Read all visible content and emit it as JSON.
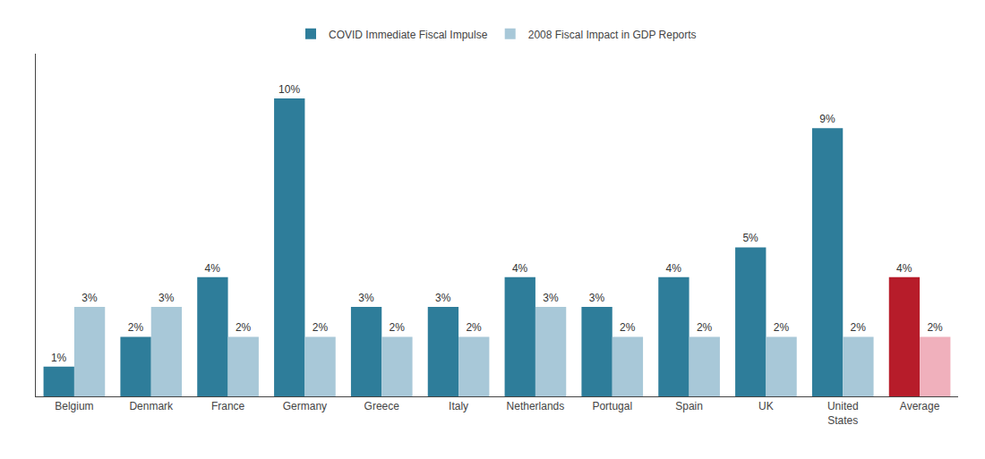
{
  "chart_data": {
    "type": "bar",
    "categories": [
      "Belgium",
      "Denmark",
      "France",
      "Germany",
      "Greece",
      "Italy",
      "Netherlands",
      "Portugal",
      "Spain",
      "UK",
      "United\nStates",
      "Average"
    ],
    "series": [
      {
        "name": "COVID Immediate Fiscal Impulse",
        "values": [
          1,
          2,
          4,
          10,
          3,
          3,
          4,
          3,
          4,
          5,
          9,
          4
        ],
        "value_labels": [
          "1%",
          "2%",
          "4%",
          "10%",
          "3%",
          "3%",
          "4%",
          "3%",
          "4%",
          "5%",
          "9%",
          "4%"
        ],
        "colors": [
          "#2e7d9a",
          "#2e7d9a",
          "#2e7d9a",
          "#2e7d9a",
          "#2e7d9a",
          "#2e7d9a",
          "#2e7d9a",
          "#2e7d9a",
          "#2e7d9a",
          "#2e7d9a",
          "#2e7d9a",
          "#b71c2a"
        ]
      },
      {
        "name": "2008 Fiscal Impact in GDP Reports",
        "values": [
          3,
          3,
          2,
          2,
          2,
          2,
          3,
          2,
          2,
          2,
          2,
          2
        ],
        "value_labels": [
          "3%",
          "3%",
          "2%",
          "2%",
          "2%",
          "2%",
          "3%",
          "2%",
          "2%",
          "2%",
          "2%",
          "2%"
        ],
        "colors": [
          "#a8c8d8",
          "#a8c8d8",
          "#a8c8d8",
          "#a8c8d8",
          "#a8c8d8",
          "#a8c8d8",
          "#a8c8d8",
          "#a8c8d8",
          "#a8c8d8",
          "#a8c8d8",
          "#a8c8d8",
          "#f0b0bc"
        ]
      }
    ],
    "ylim": [
      0,
      11.5
    ],
    "data_labels": true,
    "tick_labels": "x",
    "grid": false,
    "legend": "top"
  }
}
